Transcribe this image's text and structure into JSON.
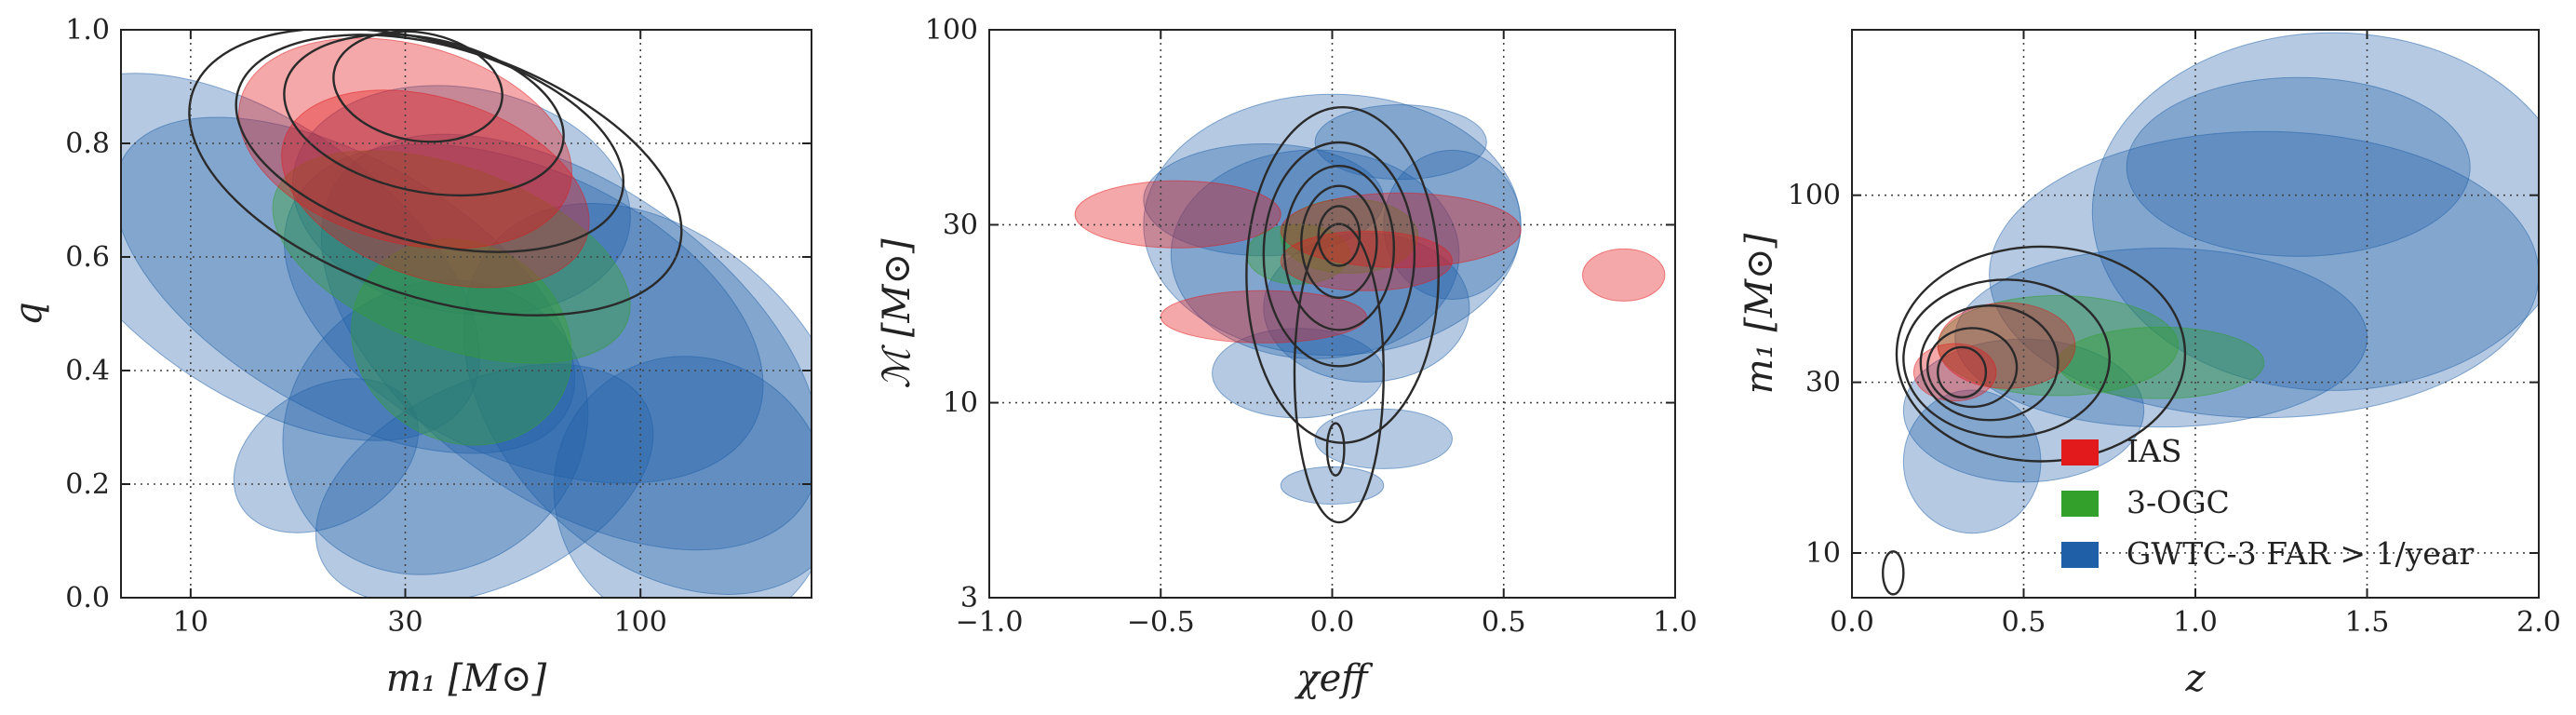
{
  "chart_data": [
    {
      "type": "contour",
      "xlabel": "m₁ [M⊙]",
      "ylabel": "q",
      "xscale": "log",
      "xlim": [
        7,
        240
      ],
      "ylim": [
        0,
        1
      ],
      "xticks": [
        {
          "value": 10,
          "label": "10"
        },
        {
          "value": 30,
          "label": "30"
        },
        {
          "value": 100,
          "label": "100"
        }
      ],
      "yticks": [
        {
          "value": 0.0,
          "label": "0.0"
        },
        {
          "value": 0.2,
          "label": "0.2"
        },
        {
          "value": 0.4,
          "label": "0.4"
        },
        {
          "value": 0.6,
          "label": "0.6"
        },
        {
          "value": 0.8,
          "label": "0.8"
        },
        {
          "value": 1.0,
          "label": "1.0"
        }
      ],
      "grid": true,
      "contours": {
        "IAS": [
          {
            "center": [
              30,
              0.8
            ],
            "spread": [
              0.22,
              0.3
            ],
            "angle": 75
          },
          {
            "center": [
              35,
              0.72
            ],
            "spread": [
              0.2,
              0.28
            ],
            "angle": 72
          }
        ],
        "3-OGC": [
          {
            "center": [
              38,
              0.6
            ],
            "spread": [
              0.2,
              0.33
            ],
            "angle": 70
          },
          {
            "center": [
              40,
              0.45
            ],
            "spread": [
              0.22,
              0.2
            ],
            "angle": 60
          }
        ],
        "GWTC-3 FAR > 1/year": [
          {
            "center": [
              14,
              0.6
            ],
            "spread": [
              0.3,
              0.45
            ],
            "angle": 55
          },
          {
            "center": [
              22,
              0.55
            ],
            "spread": [
              0.28,
              0.45
            ],
            "angle": 60
          },
          {
            "center": [
              40,
              0.7
            ],
            "spread": [
              0.25,
              0.3
            ],
            "angle": 80
          },
          {
            "center": [
              55,
              0.5
            ],
            "spread": [
              0.32,
              0.45
            ],
            "angle": 65
          },
          {
            "center": [
              70,
              0.45
            ],
            "spread": [
              0.35,
              0.5
            ],
            "angle": 55
          },
          {
            "center": [
              110,
              0.35
            ],
            "spread": [
              0.35,
              0.4
            ],
            "angle": 45
          },
          {
            "center": [
              35,
              0.3
            ],
            "spread": [
              0.35,
              0.25
            ],
            "angle": 35
          },
          {
            "center": [
              20,
              0.25
            ],
            "spread": [
              0.22,
              0.12
            ],
            "angle": 30
          },
          {
            "center": [
              45,
              0.2
            ],
            "spread": [
              0.4,
              0.18
            ],
            "angle": 25
          },
          {
            "center": [
              130,
              0.18
            ],
            "spread": [
              0.3,
              0.25
            ],
            "angle": 40
          }
        ]
      },
      "population_contours": [
        {
          "center": [
            32,
            0.9
          ],
          "spread": [
            0.12,
            0.15
          ],
          "angle": 80
        },
        {
          "center": [
            33,
            0.85
          ],
          "spread": [
            0.17,
            0.25
          ],
          "angle": 78
        },
        {
          "center": [
            34,
            0.8
          ],
          "spread": [
            0.22,
            0.35
          ],
          "angle": 75
        },
        {
          "center": [
            35,
            0.75
          ],
          "spread": [
            0.28,
            0.45
          ],
          "angle": 72
        }
      ]
    },
    {
      "type": "contour",
      "xlabel": "χeff",
      "ylabel": "ℳ [M⊙]",
      "yscale": "log",
      "xlim": [
        -1.0,
        1.0
      ],
      "ylim": [
        3,
        100
      ],
      "xticks": [
        {
          "value": -1.0,
          "label": "−1.0"
        },
        {
          "value": -0.5,
          "label": "−0.5"
        },
        {
          "value": 0.0,
          "label": "0.0"
        },
        {
          "value": 0.5,
          "label": "0.5"
        },
        {
          "value": 1.0,
          "label": "1.0"
        }
      ],
      "yticks": [
        {
          "value": 3,
          "label": "3"
        },
        {
          "value": 10,
          "label": "10"
        },
        {
          "value": 30,
          "label": "30"
        },
        {
          "value": 100,
          "label": "100"
        }
      ],
      "grid": true,
      "contours": {
        "IAS": [
          {
            "center": [
              -0.45,
              32
            ],
            "spread": [
              0.3,
              0.09
            ],
            "angle": 0
          },
          {
            "center": [
              0.2,
              29
            ],
            "spread": [
              0.35,
              0.1
            ],
            "angle": 0
          },
          {
            "center": [
              0.85,
              22
            ],
            "spread": [
              0.12,
              0.07
            ],
            "angle": 0
          },
          {
            "center": [
              -0.2,
              17
            ],
            "spread": [
              0.3,
              0.07
            ],
            "angle": 0
          },
          {
            "center": [
              0.1,
              24
            ],
            "spread": [
              0.25,
              0.08
            ],
            "angle": 0
          }
        ],
        "3-OGC": [
          {
            "center": [
              0.05,
              28
            ],
            "spread": [
              0.2,
              0.1
            ],
            "angle": 0
          },
          {
            "center": [
              -0.1,
              25
            ],
            "spread": [
              0.15,
              0.08
            ],
            "angle": 0
          }
        ],
        "GWTC-3 FAR > 1/year": [
          {
            "center": [
              0.0,
              30
            ],
            "spread": [
              0.55,
              0.35
            ],
            "angle": 0
          },
          {
            "center": [
              -0.05,
              25
            ],
            "spread": [
              0.42,
              0.28
            ],
            "angle": 0
          },
          {
            "center": [
              0.1,
              18
            ],
            "spread": [
              0.3,
              0.2
            ],
            "angle": 0
          },
          {
            "center": [
              0.2,
              50
            ],
            "spread": [
              0.25,
              0.1
            ],
            "angle": 0
          },
          {
            "center": [
              -0.1,
              12
            ],
            "spread": [
              0.25,
              0.12
            ],
            "angle": 0
          },
          {
            "center": [
              0.15,
              8
            ],
            "spread": [
              0.2,
              0.08
            ],
            "angle": 0
          },
          {
            "center": [
              0.0,
              6
            ],
            "spread": [
              0.15,
              0.05
            ],
            "angle": 0
          },
          {
            "center": [
              -0.2,
              35
            ],
            "spread": [
              0.35,
              0.15
            ],
            "angle": 0
          },
          {
            "center": [
              0.35,
              30
            ],
            "spread": [
              0.2,
              0.2
            ],
            "angle": 0
          }
        ]
      },
      "population_contours": [
        {
          "center": [
            0.02,
            28
          ],
          "spread": [
            0.06,
            0.08
          ],
          "angle": 0
        },
        {
          "center": [
            0.02,
            27
          ],
          "spread": [
            0.11,
            0.15
          ],
          "angle": 0
        },
        {
          "center": [
            0.02,
            26
          ],
          "spread": [
            0.16,
            0.22
          ],
          "angle": 0
        },
        {
          "center": [
            0.02,
            25
          ],
          "spread": [
            0.22,
            0.3
          ],
          "angle": 0
        },
        {
          "center": [
            0.03,
            22
          ],
          "spread": [
            0.28,
            0.45
          ],
          "angle": 0
        },
        {
          "center": [
            0.02,
            12
          ],
          "spread": [
            0.13,
            0.4
          ],
          "angle": 0
        },
        {
          "center": [
            0.01,
            7.5
          ],
          "spread": [
            0.025,
            0.07
          ],
          "angle": 0
        }
      ]
    },
    {
      "type": "contour",
      "xlabel": "z",
      "ylabel": "m₁ [M⊙]",
      "yscale": "log",
      "xlim": [
        0,
        2
      ],
      "ylim": [
        7.5,
        290
      ],
      "xticks": [
        {
          "value": 0.0,
          "label": "0.0"
        },
        {
          "value": 0.5,
          "label": "0.5"
        },
        {
          "value": 1.0,
          "label": "1.0"
        },
        {
          "value": 1.5,
          "label": "1.5"
        },
        {
          "value": 2.0,
          "label": "2.0"
        }
      ],
      "yticks": [
        {
          "value": 10,
          "label": "10"
        },
        {
          "value": 30,
          "label": "30"
        },
        {
          "value": 100,
          "label": "100"
        }
      ],
      "grid": true,
      "contours": {
        "IAS": [
          {
            "center": [
              0.3,
              32
            ],
            "spread": [
              0.12,
              0.08
            ],
            "angle": 0
          },
          {
            "center": [
              0.45,
              38
            ],
            "spread": [
              0.2,
              0.12
            ],
            "angle": 0
          }
        ],
        "3-OGC": [
          {
            "center": [
              0.6,
              38
            ],
            "spread": [
              0.35,
              0.14
            ],
            "angle": 0
          },
          {
            "center": [
              0.9,
              34
            ],
            "spread": [
              0.3,
              0.1
            ],
            "angle": 0
          }
        ],
        "GWTC-3 FAR > 1/year": [
          {
            "center": [
              1.4,
              90
            ],
            "spread": [
              0.7,
              0.5
            ],
            "angle": 0
          },
          {
            "center": [
              1.2,
              60
            ],
            "spread": [
              0.8,
              0.4
            ],
            "angle": 0
          },
          {
            "center": [
              0.9,
              40
            ],
            "spread": [
              0.6,
              0.25
            ],
            "angle": 0
          },
          {
            "center": [
              0.5,
              25
            ],
            "spread": [
              0.35,
              0.2
            ],
            "angle": 0
          },
          {
            "center": [
              1.3,
              120
            ],
            "spread": [
              0.5,
              0.25
            ],
            "angle": 0
          },
          {
            "center": [
              0.35,
              18
            ],
            "spread": [
              0.2,
              0.2
            ],
            "angle": 0
          }
        ]
      },
      "population_contours": [
        {
          "center": [
            0.32,
            32
          ],
          "spread": [
            0.07,
            0.07
          ],
          "angle": 0
        },
        {
          "center": [
            0.35,
            33
          ],
          "spread": [
            0.13,
            0.11
          ],
          "angle": 0
        },
        {
          "center": [
            0.4,
            34
          ],
          "spread": [
            0.2,
            0.16
          ],
          "angle": 0
        },
        {
          "center": [
            0.45,
            35
          ],
          "spread": [
            0.3,
            0.22
          ],
          "angle": 0
        },
        {
          "center": [
            0.55,
            36
          ],
          "spread": [
            0.42,
            0.3
          ],
          "angle": 0
        },
        {
          "center": [
            0.12,
            8.8
          ],
          "spread": [
            0.03,
            0.06
          ],
          "angle": 0
        }
      ]
    }
  ],
  "legend": {
    "position": "lower-right",
    "entries": [
      {
        "label": "IAS",
        "color": "#e31a1c"
      },
      {
        "label": "3-OGC",
        "color": "#33a02c"
      },
      {
        "label": "GWTC-3 FAR > 1/year",
        "color": "#1f5fa8"
      }
    ]
  },
  "colors": {
    "IAS": "#e31a1c",
    "3-OGC": "#33a02c",
    "GWTC-3 FAR > 1/year": "#1f5fa8",
    "population": "#2a2a2a",
    "grid": "#444444"
  }
}
